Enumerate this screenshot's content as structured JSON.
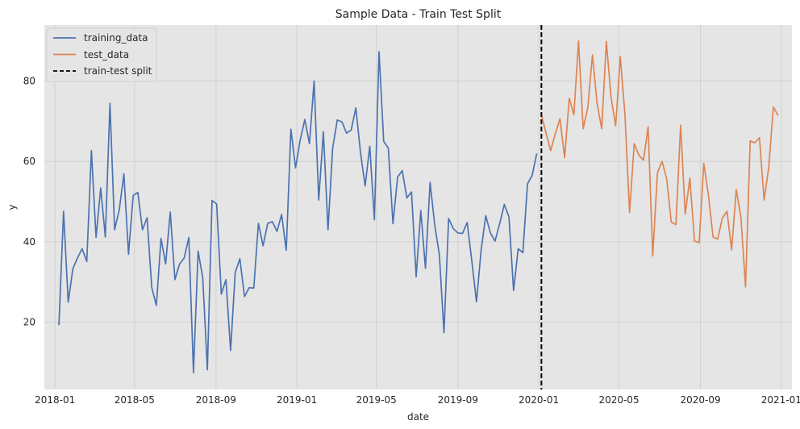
{
  "chart_data": {
    "type": "line",
    "title": "Sample Data - Train Test Split",
    "xlabel": "date",
    "ylabel": "y",
    "xlim": [
      "2017-12-16",
      "2021-01-17"
    ],
    "ylim": [
      3.3,
      93.9
    ],
    "x_ticks": [
      {
        "date": "2018-01-01",
        "label": "2018-01"
      },
      {
        "date": "2018-05-01",
        "label": "2018-05"
      },
      {
        "date": "2018-09-01",
        "label": "2018-09"
      },
      {
        "date": "2019-01-01",
        "label": "2019-01"
      },
      {
        "date": "2019-05-01",
        "label": "2019-05"
      },
      {
        "date": "2019-09-01",
        "label": "2019-09"
      },
      {
        "date": "2020-01-01",
        "label": "2020-01"
      },
      {
        "date": "2020-05-01",
        "label": "2020-05"
      },
      {
        "date": "2020-09-01",
        "label": "2020-09"
      },
      {
        "date": "2021-01-01",
        "label": "2021-01"
      }
    ],
    "y_ticks": [
      20,
      40,
      60,
      80
    ],
    "grid": true,
    "legend_position": "top-left",
    "series": [
      {
        "name": "training_data",
        "color": "#4c72b0",
        "x": [
          "2018-01-07",
          "2018-01-14",
          "2018-01-21",
          "2018-01-28",
          "2018-02-04",
          "2018-02-11",
          "2018-02-18",
          "2018-02-25",
          "2018-03-04",
          "2018-03-11",
          "2018-03-18",
          "2018-03-25",
          "2018-04-01",
          "2018-04-08",
          "2018-04-15",
          "2018-04-22",
          "2018-04-29",
          "2018-05-06",
          "2018-05-13",
          "2018-05-20",
          "2018-05-27",
          "2018-06-03",
          "2018-06-10",
          "2018-06-17",
          "2018-06-24",
          "2018-07-01",
          "2018-07-08",
          "2018-07-15",
          "2018-07-22",
          "2018-07-29",
          "2018-08-05",
          "2018-08-12",
          "2018-08-19",
          "2018-08-26",
          "2018-09-02",
          "2018-09-09",
          "2018-09-16",
          "2018-09-23",
          "2018-09-30",
          "2018-10-07",
          "2018-10-14",
          "2018-10-21",
          "2018-10-28",
          "2018-11-04",
          "2018-11-11",
          "2018-11-18",
          "2018-11-25",
          "2018-12-02",
          "2018-12-09",
          "2018-12-16",
          "2018-12-23",
          "2018-12-30",
          "2019-01-06",
          "2019-01-13",
          "2019-01-20",
          "2019-01-27",
          "2019-02-03",
          "2019-02-10",
          "2019-02-17",
          "2019-02-24",
          "2019-03-03",
          "2019-03-10",
          "2019-03-17",
          "2019-03-24",
          "2019-03-31",
          "2019-04-07",
          "2019-04-14",
          "2019-04-21",
          "2019-04-28",
          "2019-05-05",
          "2019-05-12",
          "2019-05-19",
          "2019-05-26",
          "2019-06-02",
          "2019-06-09",
          "2019-06-16",
          "2019-06-23",
          "2019-06-30",
          "2019-07-07",
          "2019-07-14",
          "2019-07-21",
          "2019-07-28",
          "2019-08-04",
          "2019-08-11",
          "2019-08-18",
          "2019-08-25",
          "2019-09-01",
          "2019-09-08",
          "2019-09-15",
          "2019-09-22",
          "2019-09-29",
          "2019-10-06",
          "2019-10-13",
          "2019-10-20",
          "2019-10-27",
          "2019-11-03",
          "2019-11-10",
          "2019-11-17",
          "2019-11-24",
          "2019-12-01",
          "2019-12-08",
          "2019-12-15",
          "2019-12-22",
          "2019-12-29"
        ],
        "y": [
          19.3,
          47.6,
          25.0,
          33.3,
          36.0,
          38.3,
          35.1,
          62.7,
          41.1,
          53.4,
          41.2,
          74.4,
          43.0,
          47.9,
          56.9,
          36.9,
          51.5,
          52.3,
          43.0,
          46.0,
          28.7,
          24.2,
          40.9,
          34.5,
          47.4,
          30.6,
          34.5,
          36.0,
          41.1,
          7.5,
          37.7,
          31.1,
          8.2,
          50.3,
          49.4,
          27.0,
          30.6,
          13.0,
          32.4,
          35.8,
          26.4,
          28.6,
          28.5,
          44.6,
          39.0,
          44.6,
          45.0,
          42.6,
          46.8,
          37.9,
          68.0,
          58.4,
          65.3,
          70.4,
          64.4,
          80.0,
          50.4,
          67.4,
          43.0,
          63.3,
          70.3,
          69.8,
          67.0,
          67.8,
          73.3,
          62.2,
          53.9,
          63.8,
          45.5,
          87.3,
          65.0,
          63.3,
          44.5,
          56.1,
          57.7,
          50.9,
          52.4,
          31.3,
          47.8,
          33.4,
          54.8,
          44.2,
          36.8,
          17.4,
          45.8,
          43.3,
          42.2,
          42.1,
          44.8,
          35.2,
          25.1,
          37.9,
          46.5,
          42.2,
          40.2,
          44.5,
          49.3,
          46.2,
          27.9,
          38.3,
          37.3,
          54.4,
          56.5,
          62.0
        ]
      },
      {
        "name": "test_data",
        "color": "#dd8452",
        "x": [
          "2020-01-05",
          "2020-01-12",
          "2020-01-19",
          "2020-01-26",
          "2020-02-02",
          "2020-02-09",
          "2020-02-16",
          "2020-02-23",
          "2020-03-01",
          "2020-03-08",
          "2020-03-15",
          "2020-03-22",
          "2020-03-29",
          "2020-04-05",
          "2020-04-12",
          "2020-04-19",
          "2020-04-26",
          "2020-05-03",
          "2020-05-10",
          "2020-05-17",
          "2020-05-24",
          "2020-05-31",
          "2020-06-07",
          "2020-06-14",
          "2020-06-21",
          "2020-06-28",
          "2020-07-05",
          "2020-07-12",
          "2020-07-19",
          "2020-07-26",
          "2020-08-02",
          "2020-08-09",
          "2020-08-16",
          "2020-08-23",
          "2020-08-30",
          "2020-09-06",
          "2020-09-13",
          "2020-09-20",
          "2020-09-27",
          "2020-10-04",
          "2020-10-11",
          "2020-10-18",
          "2020-10-25",
          "2020-11-01",
          "2020-11-08",
          "2020-11-15",
          "2020-11-22",
          "2020-11-29",
          "2020-12-06",
          "2020-12-13",
          "2020-12-20",
          "2020-12-27"
        ],
        "y": [
          71.6,
          67.0,
          62.7,
          66.9,
          70.6,
          60.9,
          75.7,
          71.6,
          89.9,
          68.1,
          73.4,
          86.5,
          74.4,
          68.1,
          89.8,
          76.0,
          68.8,
          86.0,
          71.8,
          47.3,
          64.4,
          61.6,
          60.3,
          68.6,
          36.5,
          57.1,
          60.0,
          55.7,
          44.9,
          44.3,
          69.0,
          46.9,
          55.8,
          40.2,
          39.8,
          59.5,
          51.6,
          41.2,
          40.7,
          45.9,
          47.6,
          38.0,
          53.0,
          46.2,
          28.8,
          65.1,
          64.6,
          65.9,
          50.4,
          58.5,
          73.5,
          71.4
        ]
      }
    ],
    "split": {
      "name": "train-test split",
      "date": "2020-01-05",
      "color": "#000000"
    }
  },
  "colors": {
    "plot_background": "#e5e5e5",
    "grid": "#d0d0d0",
    "text": "#262626"
  }
}
